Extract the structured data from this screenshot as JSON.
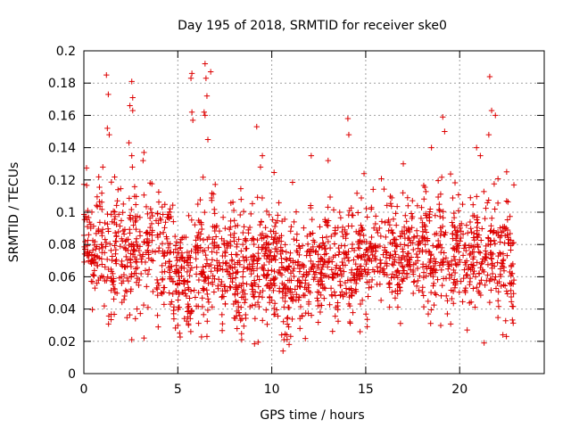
{
  "chart_data": {
    "type": "scatter",
    "title": "Day 195 of 2018, SRMTID for receiver ske0",
    "xlabel": "GPS time / hours",
    "ylabel": "SRMTID / TECUs",
    "xlim": [
      0,
      24.5
    ],
    "ylim": [
      0,
      0.2
    ],
    "xticks": [
      0,
      5,
      10,
      15,
      20
    ],
    "xtick_labels": [
      "0",
      "5",
      "10",
      "15",
      "20"
    ],
    "yticks": [
      0,
      0.02,
      0.04,
      0.06,
      0.08,
      0.1,
      0.12,
      0.14,
      0.16,
      0.18,
      0.2
    ],
    "ytick_labels": [
      "0",
      "0.02",
      "0.04",
      "0.06",
      "0.08",
      "0.1",
      "0.12",
      "0.14",
      "0.16",
      "0.18",
      "0.2"
    ],
    "grid": true,
    "marker": "+",
    "marker_color": "#dd0000",
    "series": [
      {
        "name": "SRMTID",
        "x_range": [
          0,
          22.9
        ],
        "sample_count": 2000,
        "seed": 195,
        "baseline": [
          [
            0.0,
            0.085
          ],
          [
            1.0,
            0.08
          ],
          [
            2.0,
            0.072
          ],
          [
            3.0,
            0.078
          ],
          [
            4.0,
            0.075
          ],
          [
            5.0,
            0.06
          ],
          [
            6.0,
            0.065
          ],
          [
            7.0,
            0.072
          ],
          [
            8.0,
            0.062
          ],
          [
            9.0,
            0.066
          ],
          [
            10.0,
            0.07
          ],
          [
            11.0,
            0.055
          ],
          [
            12.0,
            0.062
          ],
          [
            13.0,
            0.07
          ],
          [
            14.0,
            0.066
          ],
          [
            15.0,
            0.074
          ],
          [
            16.0,
            0.07
          ],
          [
            17.0,
            0.072
          ],
          [
            18.0,
            0.076
          ],
          [
            19.0,
            0.075
          ],
          [
            20.0,
            0.07
          ],
          [
            21.0,
            0.07
          ],
          [
            22.0,
            0.072
          ],
          [
            22.9,
            0.07
          ]
        ],
        "spread": 0.017,
        "outliers": [
          [
            1.2,
            0.185
          ],
          [
            1.3,
            0.173
          ],
          [
            1.25,
            0.152
          ],
          [
            1.35,
            0.148
          ],
          [
            2.55,
            0.181
          ],
          [
            2.6,
            0.171
          ],
          [
            2.45,
            0.166
          ],
          [
            2.6,
            0.163
          ],
          [
            3.2,
            0.137
          ],
          [
            3.15,
            0.132
          ],
          [
            2.4,
            0.143
          ],
          [
            2.55,
            0.135
          ],
          [
            5.75,
            0.186
          ],
          [
            5.7,
            0.183
          ],
          [
            5.75,
            0.162
          ],
          [
            5.8,
            0.157
          ],
          [
            6.45,
            0.192
          ],
          [
            6.5,
            0.183
          ],
          [
            6.55,
            0.172
          ],
          [
            6.4,
            0.162
          ],
          [
            6.45,
            0.16
          ],
          [
            6.75,
            0.187
          ],
          [
            6.6,
            0.145
          ],
          [
            9.2,
            0.153
          ],
          [
            9.5,
            0.135
          ],
          [
            9.4,
            0.128
          ],
          [
            12.1,
            0.135
          ],
          [
            13.0,
            0.132
          ],
          [
            14.05,
            0.158
          ],
          [
            14.1,
            0.148
          ],
          [
            17.0,
            0.13
          ],
          [
            18.5,
            0.14
          ],
          [
            19.1,
            0.159
          ],
          [
            19.2,
            0.15
          ],
          [
            21.6,
            0.184
          ],
          [
            21.7,
            0.163
          ],
          [
            21.55,
            0.148
          ],
          [
            21.9,
            0.16
          ],
          [
            20.9,
            0.14
          ],
          [
            21.1,
            0.135
          ],
          [
            22.5,
            0.125
          ],
          [
            2.55,
            0.021
          ],
          [
            3.2,
            0.022
          ],
          [
            5.1,
            0.025
          ],
          [
            6.55,
            0.023
          ],
          [
            8.4,
            0.021
          ],
          [
            10.6,
            0.014
          ],
          [
            10.65,
            0.021
          ],
          [
            11.5,
            0.028
          ],
          [
            14.7,
            0.026
          ],
          [
            20.4,
            0.027
          ],
          [
            21.3,
            0.019
          ],
          [
            22.3,
            0.024
          ]
        ]
      }
    ]
  }
}
